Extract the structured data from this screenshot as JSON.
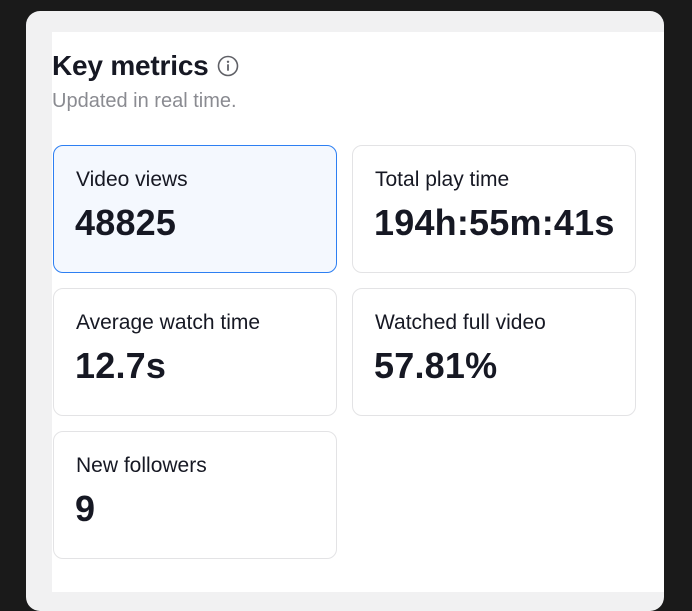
{
  "header": {
    "title": "Key metrics",
    "subtitle": "Updated in real time.",
    "info_icon": "info-icon"
  },
  "metrics": [
    {
      "label": "Video views",
      "value": "48825",
      "selected": true
    },
    {
      "label": "Total play time",
      "value": "194h:55m:41s",
      "selected": false
    },
    {
      "label": "Average watch time",
      "value": "12.7s",
      "selected": false
    },
    {
      "label": "Watched full video",
      "value": "57.81%",
      "selected": false
    },
    {
      "label": "New followers",
      "value": "9",
      "selected": false
    }
  ],
  "colors": {
    "accent": "#2d7ff2",
    "text": "#161823",
    "muted": "#8a8b91"
  }
}
